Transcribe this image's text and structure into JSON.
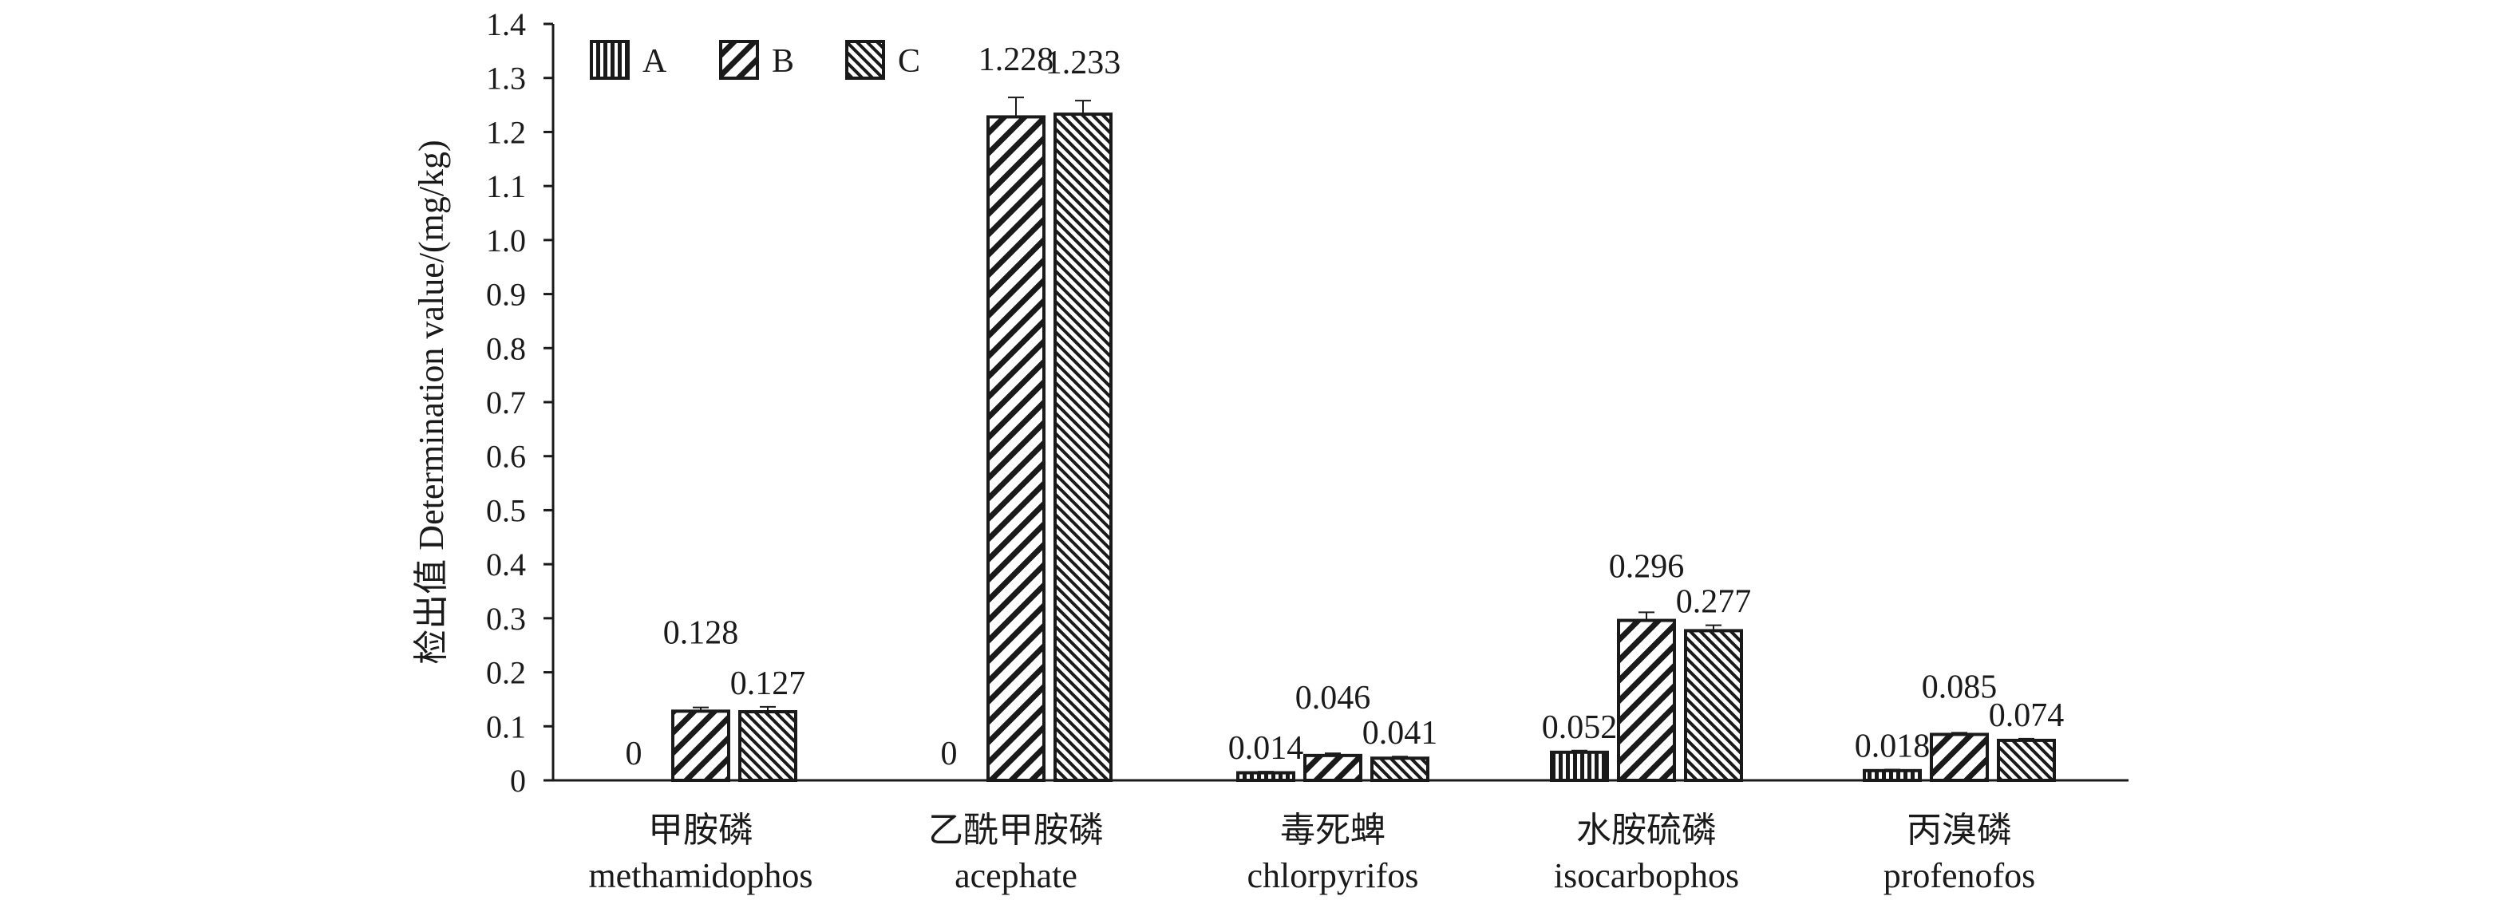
{
  "chart_data": {
    "type": "bar",
    "ylabel": "检出值 Determination value/(mg/kg)",
    "ylim": [
      0,
      1.4
    ],
    "yticks": [
      "0",
      "0.1",
      "0.2",
      "0.3",
      "0.4",
      "0.5",
      "0.6",
      "0.7",
      "0.8",
      "0.9",
      "1.0",
      "1.1",
      "1.2",
      "1.3",
      "1.4"
    ],
    "grid": false,
    "legend_position": "top-left",
    "categories": [
      {
        "zh": "甲胺磷",
        "en": "methamidophos"
      },
      {
        "zh": "乙酰甲胺磷",
        "en": "acephate"
      },
      {
        "zh": "毒死蜱",
        "en": "chlorpyrifos"
      },
      {
        "zh": "水胺硫磷",
        "en": "isocarbophos"
      },
      {
        "zh": "丙溴磷",
        "en": "profenofos"
      }
    ],
    "series": [
      {
        "name": "A",
        "pattern": "vertical-stripes",
        "values": [
          0,
          0,
          0.014,
          0.052,
          0.018
        ],
        "labels": [
          "0",
          "0",
          "0.014",
          "0.052",
          "0.018"
        ],
        "errors": [
          0,
          0,
          0.002,
          0.003,
          0.002
        ]
      },
      {
        "name": "B",
        "pattern": "diagonal-wide",
        "values": [
          0.128,
          1.228,
          0.046,
          0.296,
          0.085
        ],
        "labels": [
          "0.128",
          "1.228",
          "0.046",
          "0.296",
          "0.085"
        ],
        "errors": [
          0.007,
          0.036,
          0.004,
          0.015,
          0.003
        ]
      },
      {
        "name": "C",
        "pattern": "diagonal-dense",
        "values": [
          0.127,
          1.233,
          0.041,
          0.277,
          0.074
        ],
        "labels": [
          "0.127",
          "1.233",
          "0.041",
          "0.277",
          "0.074"
        ],
        "errors": [
          0.009,
          0.025,
          0.003,
          0.01,
          0.003
        ]
      }
    ],
    "colors": {
      "ink": "#1a1a1a",
      "background": "#ffffff"
    }
  }
}
